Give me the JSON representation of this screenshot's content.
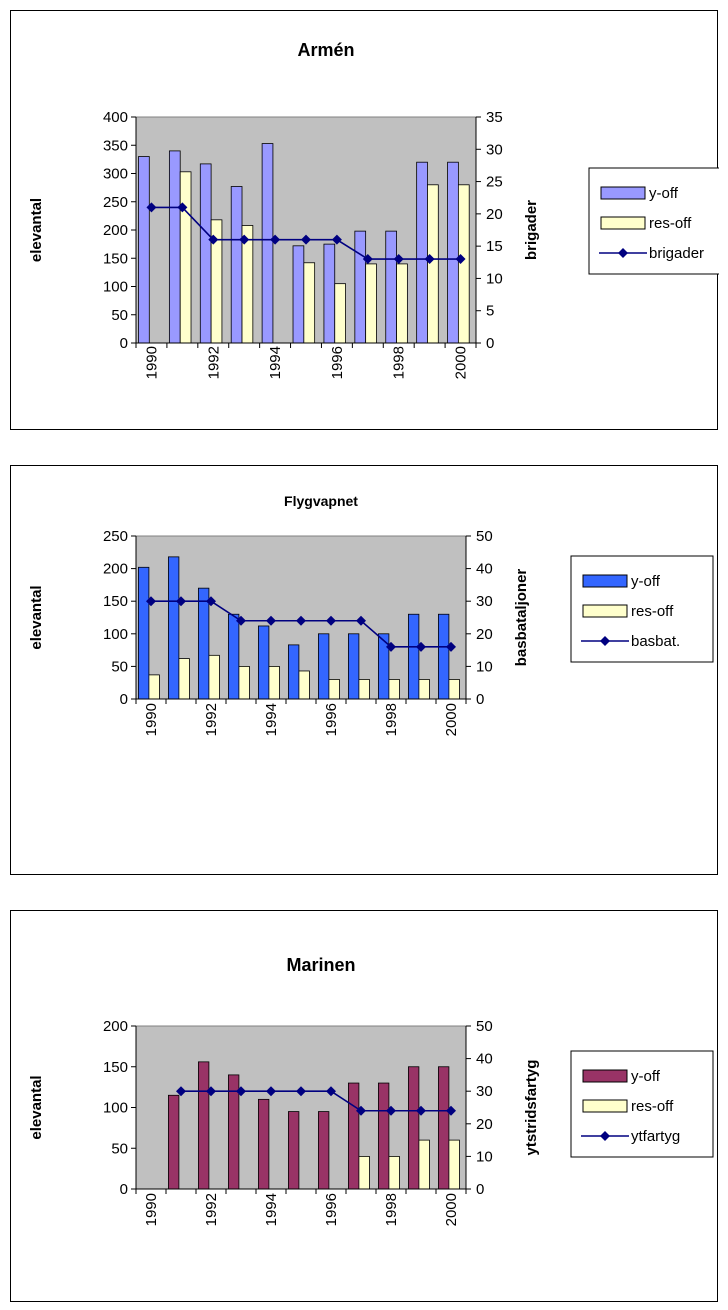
{
  "chart_data": [
    {
      "type": "bar",
      "title": "Armén",
      "ylabel": "elevantal",
      "y2label": "brigader",
      "ylim": [
        0,
        400
      ],
      "y2lim": [
        0,
        35
      ],
      "yticks": [
        0,
        50,
        100,
        150,
        200,
        250,
        300,
        350,
        400
      ],
      "y2ticks": [
        0,
        5,
        10,
        15,
        20,
        25,
        30,
        35
      ],
      "categories": [
        "1990",
        "1991",
        "1992",
        "1993",
        "1994",
        "1995",
        "1996",
        "1997",
        "1998",
        "1999",
        "2000"
      ],
      "xtick_labels": [
        "1990",
        "1992",
        "1994",
        "1996",
        "1998",
        "2000"
      ],
      "grid": false,
      "plot_background": "#c0c0c0",
      "legend_position": "right",
      "series": [
        {
          "name": "y-off",
          "kind": "bar",
          "axis": "left",
          "color": "#9999ff",
          "values": [
            330,
            340,
            317,
            277,
            353,
            172,
            175,
            198,
            198,
            320,
            320
          ]
        },
        {
          "name": "res-off",
          "kind": "bar",
          "axis": "left",
          "color": "#ffffcc",
          "values": [
            0,
            303,
            218,
            208,
            0,
            142,
            105,
            140,
            140,
            280,
            280
          ]
        },
        {
          "name": "brigader",
          "kind": "line",
          "axis": "right",
          "color": "#000080",
          "values": [
            21,
            21,
            16,
            16,
            16,
            16,
            16,
            13,
            13,
            13,
            13
          ]
        }
      ]
    },
    {
      "type": "bar",
      "title": "Flygvapnet",
      "ylabel": "elevantal",
      "y2label": "basbataljoner",
      "ylim": [
        0,
        250
      ],
      "y2lim": [
        0,
        50
      ],
      "yticks": [
        0,
        50,
        100,
        150,
        200,
        250
      ],
      "y2ticks": [
        0,
        10,
        20,
        30,
        40,
        50
      ],
      "categories": [
        "1990",
        "1991",
        "1992",
        "1993",
        "1994",
        "1995",
        "1996",
        "1997",
        "1998",
        "1999",
        "2000"
      ],
      "xtick_labels": [
        "1990",
        "1992",
        "1994",
        "1996",
        "1998",
        "2000"
      ],
      "grid": false,
      "plot_background": "#c0c0c0",
      "legend_position": "right",
      "series": [
        {
          "name": "y-off",
          "kind": "bar",
          "axis": "left",
          "color": "#3366ff",
          "values": [
            202,
            218,
            170,
            130,
            112,
            83,
            100,
            100,
            100,
            130,
            130
          ]
        },
        {
          "name": "res-off",
          "kind": "bar",
          "axis": "left",
          "color": "#ffffcc",
          "values": [
            37,
            62,
            67,
            50,
            50,
            43,
            30,
            30,
            30,
            30,
            30
          ]
        },
        {
          "name": "basbat.",
          "kind": "line",
          "axis": "right",
          "color": "#000080",
          "values": [
            30,
            30,
            30,
            24,
            24,
            24,
            24,
            24,
            16,
            16,
            16
          ]
        }
      ]
    },
    {
      "type": "bar",
      "title": "Marinen",
      "ylabel": "elevantal",
      "y2label": "ytstridsfartyg",
      "ylim": [
        0,
        200
      ],
      "y2lim": [
        0,
        50
      ],
      "yticks": [
        0,
        50,
        100,
        150,
        200
      ],
      "y2ticks": [
        0,
        10,
        20,
        30,
        40,
        50
      ],
      "categories": [
        "1990",
        "1991",
        "1992",
        "1993",
        "1994",
        "1995",
        "1996",
        "1997",
        "1998",
        "1999",
        "2000"
      ],
      "xtick_labels": [
        "1990",
        "1992",
        "1994",
        "1996",
        "1998",
        "2000"
      ],
      "grid": false,
      "plot_background": "#c0c0c0",
      "legend_position": "right",
      "series": [
        {
          "name": "y-off",
          "kind": "bar",
          "axis": "left",
          "color": "#993366",
          "values": [
            0,
            115,
            156,
            140,
            110,
            95,
            95,
            130,
            130,
            150,
            150
          ]
        },
        {
          "name": "res-off",
          "kind": "bar",
          "axis": "left",
          "color": "#ffffcc",
          "values": [
            0,
            0,
            0,
            0,
            0,
            0,
            0,
            40,
            40,
            60,
            60
          ]
        },
        {
          "name": "ytfartyg",
          "kind": "line",
          "axis": "right",
          "color": "#000080",
          "values": [
            null,
            30,
            30,
            30,
            30,
            30,
            30,
            24,
            24,
            24,
            24
          ]
        }
      ]
    }
  ]
}
